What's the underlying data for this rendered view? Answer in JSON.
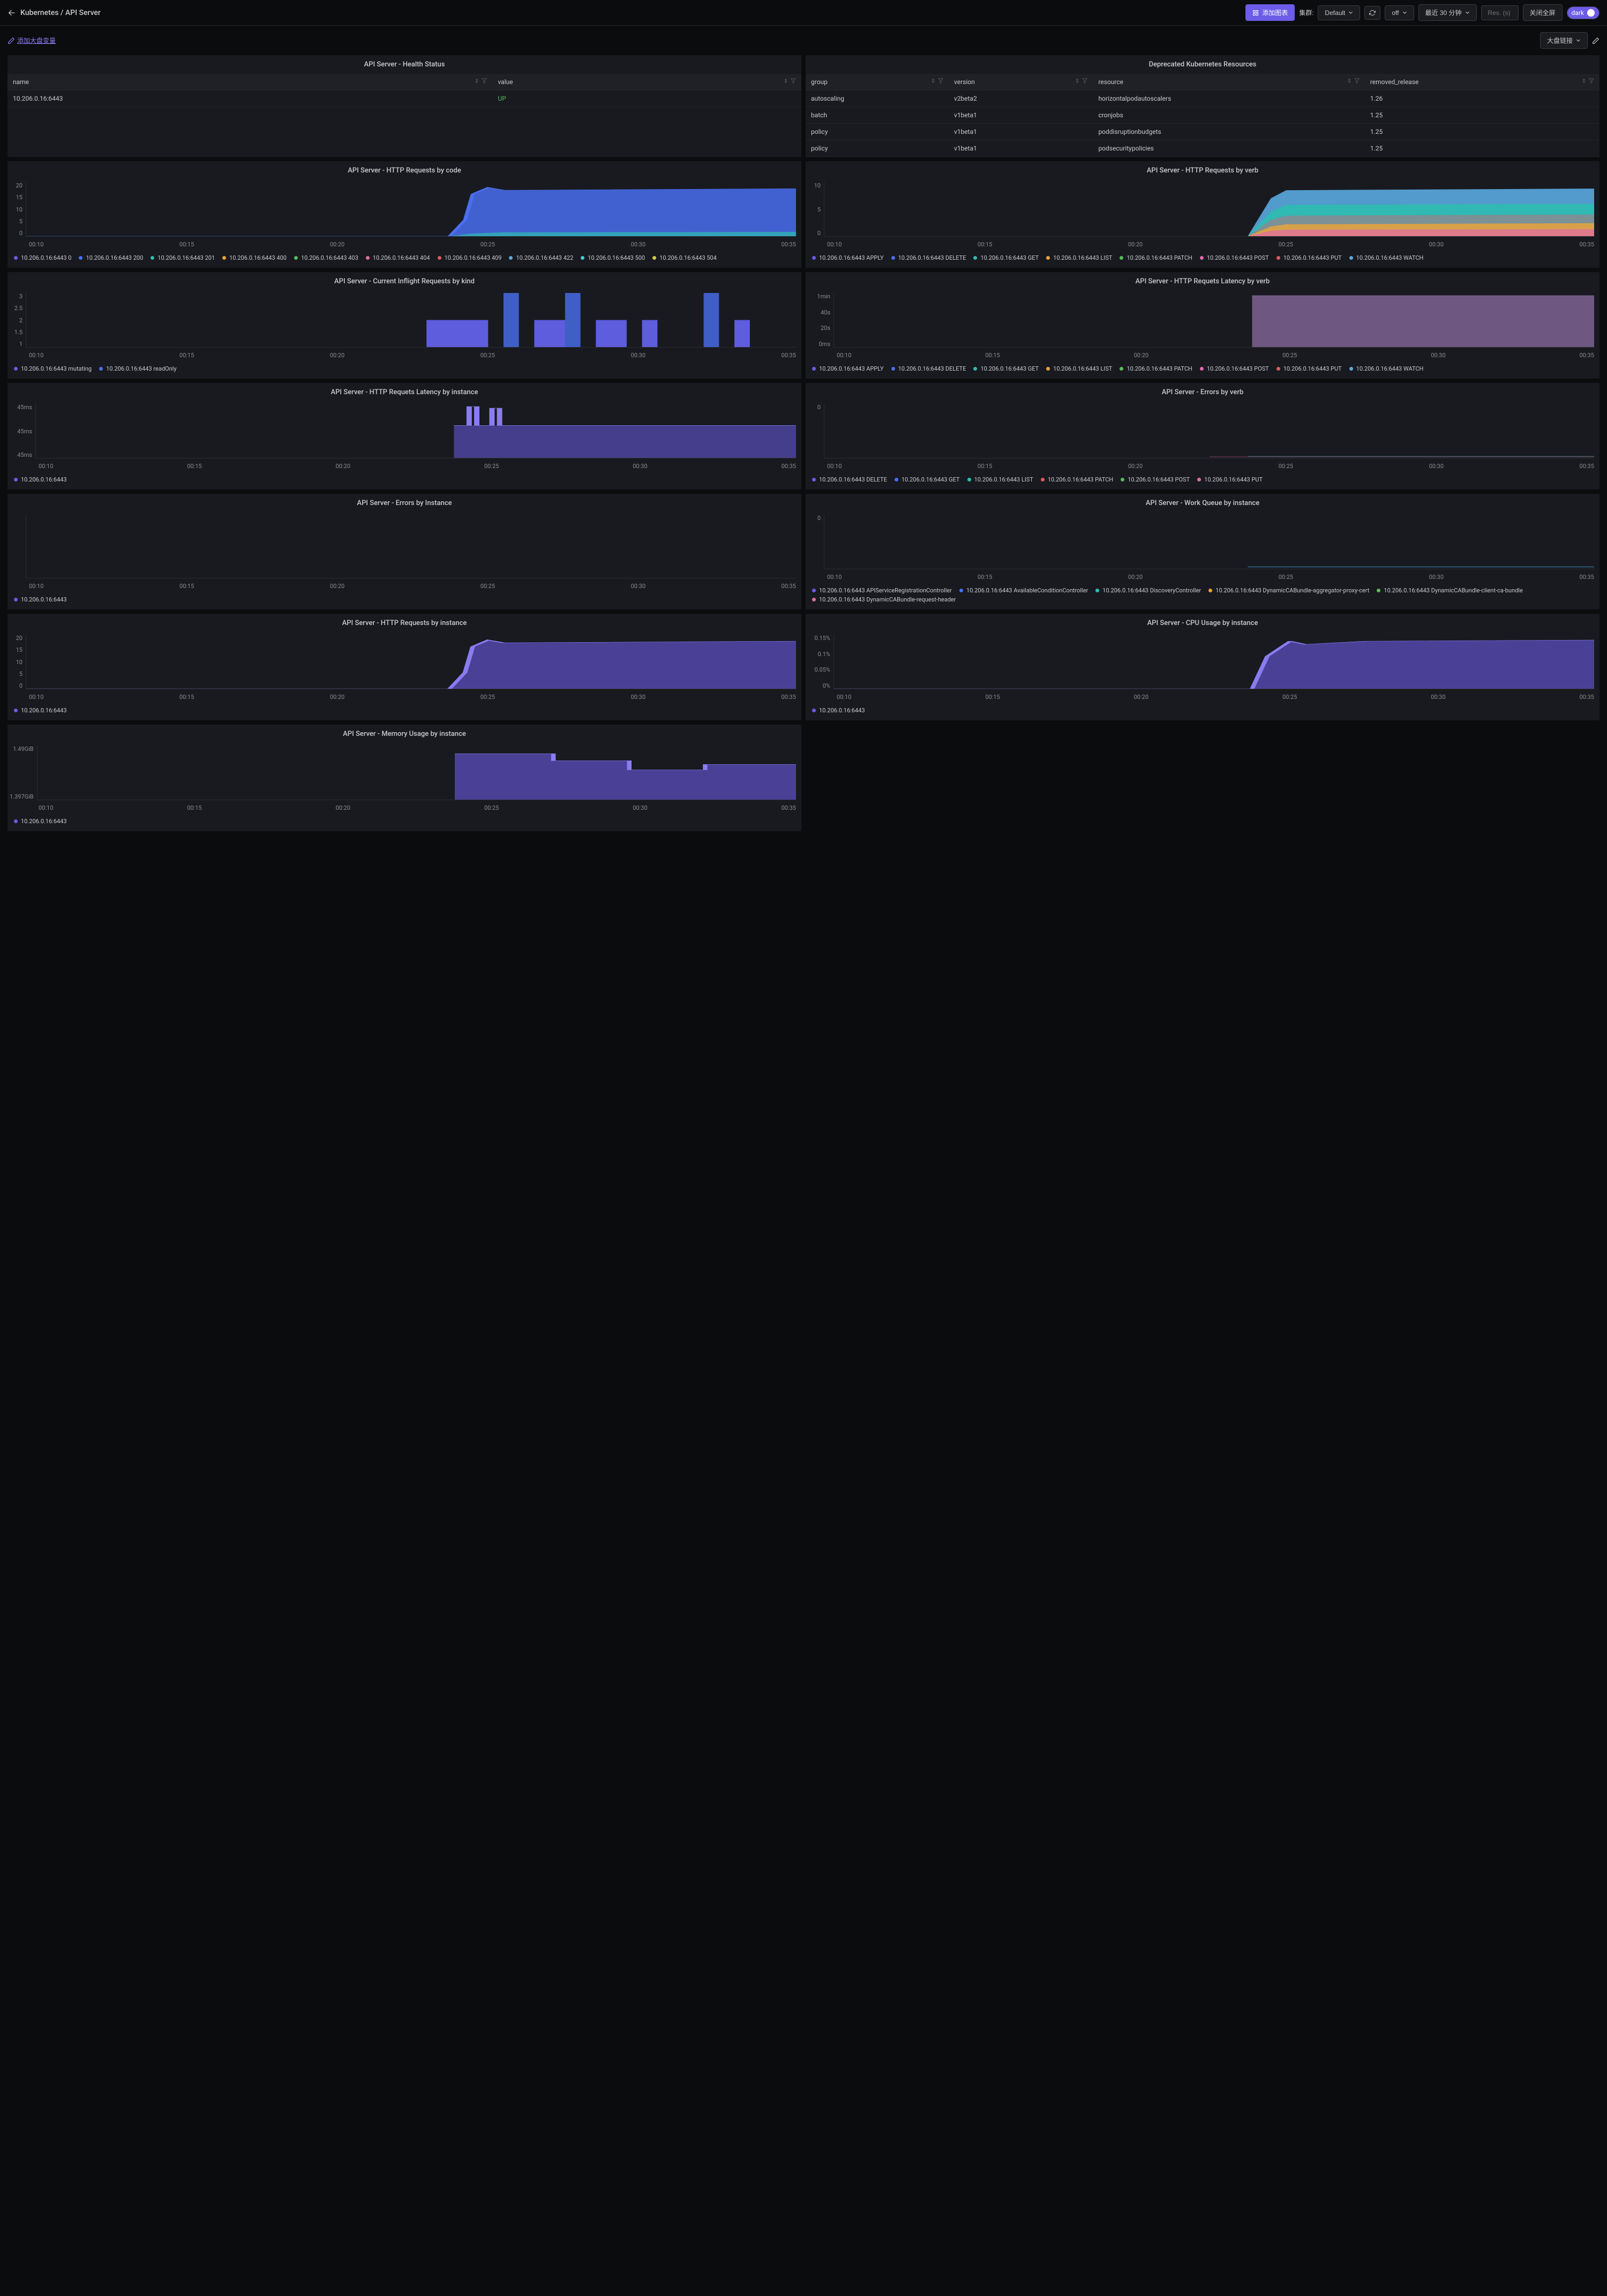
{
  "colors": {
    "purple": "#6c5ce7",
    "blue": "#4a6ff0",
    "teal": "#2dbdb0",
    "green": "#5cb85c",
    "orange": "#e8a33d",
    "pink": "#e06ba8",
    "red": "#e05a5a",
    "lightblue": "#5aa9e0",
    "violet": "#8a7cf0",
    "yellow": "#d8c84a",
    "cyan": "#4ac8d8",
    "mauve": "#b68ad0",
    "grey": "#888a90"
  },
  "header": {
    "breadcrumb": "Kubernetes / API Server",
    "add_chart": "添加图表",
    "cluster_label": "集群:",
    "cluster_value": "Default",
    "refresh_label": "off",
    "time_range": "最近 30 分钟",
    "res_placeholder": "Res. (s)",
    "close_fullscreen": "关闭全屏",
    "theme": "dark"
  },
  "subheader": {
    "add_var": "添加大盘变量",
    "dashboard_link": "大盘链接"
  },
  "x_ticks": [
    "00:10",
    "00:15",
    "00:20",
    "00:25",
    "00:30",
    "00:35"
  ],
  "panels": {
    "health": {
      "title": "API Server - Health Status",
      "cols": [
        "name",
        "value"
      ],
      "rows": [
        [
          "10.206.0.16:6443",
          "UP"
        ]
      ]
    },
    "deprecated": {
      "title": "Deprecated Kubernetes Resources",
      "cols": [
        "group",
        "version",
        "resource",
        "removed_release"
      ],
      "rows": [
        [
          "autoscaling",
          "v2beta2",
          "horizontalpodautoscalers",
          "1.26"
        ],
        [
          "batch",
          "v1beta1",
          "cronjobs",
          "1.25"
        ],
        [
          "policy",
          "v1beta1",
          "poddisruptionbudgets",
          "1.25"
        ],
        [
          "policy",
          "v1beta1",
          "podsecuritypolicies",
          "1.25"
        ]
      ]
    },
    "http_code": {
      "title": "API Server - HTTP Requests by code",
      "y_ticks": [
        "20",
        "15",
        "10",
        "5",
        "0"
      ],
      "legend": [
        {
          "label": "10.206.0.16:6443 0",
          "color": "purple"
        },
        {
          "label": "10.206.0.16:6443 200",
          "color": "blue"
        },
        {
          "label": "10.206.0.16:6443 201",
          "color": "teal"
        },
        {
          "label": "10.206.0.16:6443 400",
          "color": "orange"
        },
        {
          "label": "10.206.0.16:6443 403",
          "color": "green"
        },
        {
          "label": "10.206.0.16:6443 404",
          "color": "pink"
        },
        {
          "label": "10.206.0.16:6443 409",
          "color": "red"
        },
        {
          "label": "10.206.0.16:6443 422",
          "color": "lightblue"
        },
        {
          "label": "10.206.0.16:6443 500",
          "color": "cyan"
        },
        {
          "label": "10.206.0.16:6443 504",
          "color": "yellow"
        }
      ]
    },
    "http_verb": {
      "title": "API Server - HTTP Requests by verb",
      "y_ticks": [
        "10",
        "5",
        "0"
      ],
      "legend": [
        {
          "label": "10.206.0.16:6443 APPLY",
          "color": "purple"
        },
        {
          "label": "10.206.0.16:6443 DELETE",
          "color": "blue"
        },
        {
          "label": "10.206.0.16:6443 GET",
          "color": "teal"
        },
        {
          "label": "10.206.0.16:6443 LIST",
          "color": "orange"
        },
        {
          "label": "10.206.0.16:6443 PATCH",
          "color": "green"
        },
        {
          "label": "10.206.0.16:6443 POST",
          "color": "pink"
        },
        {
          "label": "10.206.0.16:6443 PUT",
          "color": "red"
        },
        {
          "label": "10.206.0.16:6443 WATCH",
          "color": "lightblue"
        }
      ]
    },
    "inflight": {
      "title": "API Server - Current Inflight Requests by kind",
      "y_ticks": [
        "3",
        "2.5",
        "2",
        "1.5",
        "1"
      ],
      "legend": [
        {
          "label": "10.206.0.16:6443 mutating",
          "color": "purple"
        },
        {
          "label": "10.206.0.16:6443 readOnly",
          "color": "blue"
        }
      ]
    },
    "latency_verb": {
      "title": "API Server - HTTP Requets Latency by verb",
      "y_ticks": [
        "1min",
        "40s",
        "20s",
        "0ms"
      ],
      "legend": [
        {
          "label": "10.206.0.16:6443 APPLY",
          "color": "purple"
        },
        {
          "label": "10.206.0.16:6443 DELETE",
          "color": "blue"
        },
        {
          "label": "10.206.0.16:6443 GET",
          "color": "teal"
        },
        {
          "label": "10.206.0.16:6443 LIST",
          "color": "orange"
        },
        {
          "label": "10.206.0.16:6443 PATCH",
          "color": "green"
        },
        {
          "label": "10.206.0.16:6443 POST",
          "color": "pink"
        },
        {
          "label": "10.206.0.16:6443 PUT",
          "color": "red"
        },
        {
          "label": "10.206.0.16:6443 WATCH",
          "color": "lightblue"
        }
      ]
    },
    "latency_instance": {
      "title": "API Server - HTTP Requets Latency by instance",
      "y_ticks": [
        "45ms",
        "45ms",
        "45ms"
      ],
      "legend": [
        {
          "label": "10.206.0.16:6443",
          "color": "purple"
        }
      ]
    },
    "errors_verb": {
      "title": "API Server - Errors by verb",
      "y_ticks": [
        "0"
      ],
      "legend": [
        {
          "label": "10.206.0.16:6443 DELETE",
          "color": "purple"
        },
        {
          "label": "10.206.0.16:6443 GET",
          "color": "blue"
        },
        {
          "label": "10.206.0.16:6443 LIST",
          "color": "teal"
        },
        {
          "label": "10.206.0.16:6443 PATCH",
          "color": "red"
        },
        {
          "label": "10.206.0.16:6443 POST",
          "color": "green"
        },
        {
          "label": "10.206.0.16:6443 PUT",
          "color": "pink"
        }
      ]
    },
    "errors_instance": {
      "title": "API Server - Errors by Instance",
      "y_ticks": [
        ""
      ],
      "legend": [
        {
          "label": "10.206.0.16:6443",
          "color": "purple"
        }
      ]
    },
    "work_queue": {
      "title": "API Server - Work Queue by instance",
      "y_ticks": [
        "0"
      ],
      "legend": [
        {
          "label": "10.206.0.16:6443 APIServiceRegistrationController",
          "color": "purple"
        },
        {
          "label": "10.206.0.16:6443 AvailableConditionController",
          "color": "blue"
        },
        {
          "label": "10.206.0.16:6443 DiscoveryController",
          "color": "teal"
        },
        {
          "label": "10.206.0.16:6443 DynamicCABundle-aggregator-proxy-cert",
          "color": "orange"
        },
        {
          "label": "10.206.0.16:6443 DynamicCABundle-client-ca-bundle",
          "color": "green"
        },
        {
          "label": "10.206.0.16:6443 DynamicCABundle-request-header",
          "color": "pink"
        }
      ]
    },
    "http_instance": {
      "title": "API Server - HTTP Requests by instance",
      "y_ticks": [
        "20",
        "15",
        "10",
        "5",
        "0"
      ],
      "legend": [
        {
          "label": "10.206.0.16:6443",
          "color": "purple"
        }
      ]
    },
    "cpu": {
      "title": "API Server - CPU Usage by instance",
      "y_ticks": [
        "0.15%",
        "0.1%",
        "0.05%",
        "0%"
      ],
      "legend": [
        {
          "label": "10.206.0.16:6443",
          "color": "purple"
        }
      ]
    },
    "memory": {
      "title": "API Server - Memory Usage by instance",
      "y_ticks": [
        "1.49GiB",
        "1.397GiB"
      ],
      "legend": [
        {
          "label": "10.206.0.16:6443",
          "color": "purple"
        }
      ]
    }
  }
}
